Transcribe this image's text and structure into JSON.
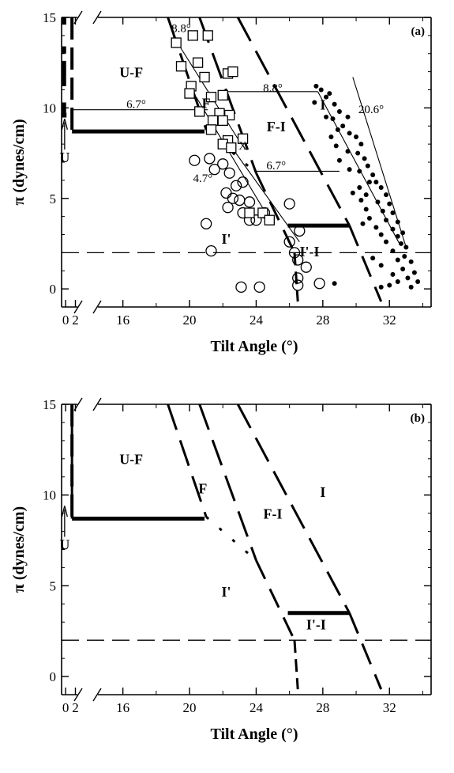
{
  "chart_data": [
    {
      "type": "scatter",
      "panel_label": "(a)",
      "xlabel": "Tilt Angle (°)",
      "ylabel": "π (dynes/cm)",
      "x_ticks": [
        "0",
        "2",
        "16",
        "20",
        "24",
        "28",
        "32"
      ],
      "y_ticks": [
        "0",
        "5",
        "10",
        "15"
      ],
      "xlim": [
        14.5,
        34.5
      ],
      "ylim": [
        -1,
        15
      ],
      "axis_break": "between 2 and 16",
      "region_labels": [
        {
          "text": "U-F",
          "x": 16.5,
          "y": 11.7
        },
        {
          "text": "F",
          "x": 21.0,
          "y": 10.0
        },
        {
          "text": "F-I",
          "x": 25.2,
          "y": 8.7
        },
        {
          "text": "I",
          "x": 28.0,
          "y": 9.9
        },
        {
          "text": "I'",
          "x": 22.2,
          "y": 2.5
        },
        {
          "text": "I'-I",
          "x": 27.2,
          "y": 1.8
        },
        {
          "text": "U",
          "x": -0.2,
          "y": 7.0
        },
        {
          "text": "X",
          "x": 23.2,
          "y": 7.7
        }
      ],
      "annotations": [
        {
          "text": "8.8°",
          "x": 19.5,
          "y": 14.2
        },
        {
          "text": "6.7°",
          "x": 16.8,
          "y": 10.0
        },
        {
          "text": "8.8°",
          "x": 25.0,
          "y": 10.9
        },
        {
          "text": "20.6°",
          "x": 30.9,
          "y": 9.7
        },
        {
          "text": "6.7°",
          "x": 25.2,
          "y": 6.6
        },
        {
          "text": "4.7°",
          "x": 20.8,
          "y": 5.9
        }
      ],
      "series": [
        {
          "marker": "open-square",
          "points": [
            [
              19.2,
              13.6
            ],
            [
              20.2,
              14.0
            ],
            [
              21.1,
              14.0
            ],
            [
              19.5,
              12.3
            ],
            [
              20.5,
              12.5
            ],
            [
              20.9,
              11.7
            ],
            [
              20.1,
              11.2
            ],
            [
              20.0,
              10.8
            ],
            [
              21.3,
              10.6
            ],
            [
              22.0,
              10.7
            ],
            [
              22.3,
              11.9
            ],
            [
              22.6,
              12.0
            ],
            [
              21.8,
              9.7
            ],
            [
              22.4,
              9.6
            ],
            [
              20.6,
              9.8
            ],
            [
              21.4,
              9.3
            ],
            [
              22.0,
              9.3
            ],
            [
              21.3,
              8.8
            ],
            [
              22.3,
              8.2
            ],
            [
              22.0,
              8.0
            ],
            [
              22.5,
              7.8
            ],
            [
              23.2,
              8.3
            ],
            [
              23.6,
              4.2
            ],
            [
              24.4,
              4.2
            ],
            [
              24.8,
              3.8
            ]
          ]
        },
        {
          "marker": "open-circle",
          "points": [
            [
              20.3,
              7.1
            ],
            [
              21.2,
              7.2
            ],
            [
              21.5,
              6.6
            ],
            [
              22.0,
              6.9
            ],
            [
              22.4,
              6.4
            ],
            [
              22.8,
              5.7
            ],
            [
              23.2,
              5.9
            ],
            [
              22.2,
              5.3
            ],
            [
              22.6,
              5.0
            ],
            [
              22.3,
              4.5
            ],
            [
              23.0,
              4.9
            ],
            [
              23.6,
              4.8
            ],
            [
              23.2,
              4.2
            ],
            [
              23.6,
              3.8
            ],
            [
              24.0,
              3.8
            ],
            [
              24.5,
              4.2
            ],
            [
              21.0,
              3.6
            ],
            [
              21.3,
              2.1
            ],
            [
              26.0,
              4.7
            ],
            [
              26.0,
              2.6
            ],
            [
              26.3,
              2.0
            ],
            [
              26.5,
              1.6
            ],
            [
              26.5,
              0.6
            ],
            [
              26.5,
              0.2
            ],
            [
              27.0,
              1.2
            ],
            [
              27.8,
              0.3
            ],
            [
              26.6,
              3.2
            ],
            [
              23.1,
              0.1
            ],
            [
              24.2,
              0.1
            ]
          ]
        },
        {
          "marker": "filled-dot",
          "points": [
            [
              27.6,
              11.2
            ],
            [
              27.9,
              11.0
            ],
            [
              28.2,
              10.6
            ],
            [
              28.4,
              10.8
            ],
            [
              27.5,
              10.3
            ],
            [
              28.7,
              10.2
            ],
            [
              29.0,
              9.8
            ],
            [
              28.2,
              9.5
            ],
            [
              28.6,
              9.4
            ],
            [
              29.5,
              9.5
            ],
            [
              29.2,
              9.0
            ],
            [
              28.9,
              8.8
            ],
            [
              29.6,
              8.6
            ],
            [
              28.5,
              8.4
            ],
            [
              30.0,
              8.4
            ],
            [
              30.3,
              8.0
            ],
            [
              28.8,
              7.9
            ],
            [
              29.5,
              7.6
            ],
            [
              30.1,
              7.5
            ],
            [
              30.5,
              7.2
            ],
            [
              29.0,
              7.1
            ],
            [
              30.7,
              6.8
            ],
            [
              29.6,
              6.6
            ],
            [
              30.2,
              6.5
            ],
            [
              31.0,
              6.3
            ],
            [
              30.8,
              5.9
            ],
            [
              31.2,
              5.9
            ],
            [
              30.2,
              5.6
            ],
            [
              31.5,
              5.6
            ],
            [
              29.8,
              5.3
            ],
            [
              30.6,
              5.2
            ],
            [
              31.8,
              5.2
            ],
            [
              30.3,
              4.9
            ],
            [
              31.3,
              4.8
            ],
            [
              32.0,
              4.7
            ],
            [
              30.6,
              4.4
            ],
            [
              31.6,
              4.3
            ],
            [
              32.2,
              4.2
            ],
            [
              30.8,
              3.9
            ],
            [
              31.8,
              3.8
            ],
            [
              32.5,
              3.7
            ],
            [
              30.4,
              3.6
            ],
            [
              31.2,
              3.4
            ],
            [
              32.2,
              3.3
            ],
            [
              32.8,
              3.1
            ],
            [
              31.5,
              3.0
            ],
            [
              32.5,
              2.9
            ],
            [
              31.8,
              2.6
            ],
            [
              32.7,
              2.5
            ],
            [
              33.0,
              2.3
            ],
            [
              32.2,
              2.1
            ],
            [
              32.9,
              1.8
            ],
            [
              31.0,
              1.7
            ],
            [
              32.5,
              1.6
            ],
            [
              33.3,
              1.5
            ],
            [
              31.5,
              1.3
            ],
            [
              32.8,
              1.1
            ],
            [
              33.5,
              0.9
            ],
            [
              32.2,
              0.8
            ],
            [
              33.1,
              0.6
            ],
            [
              32.5,
              0.4
            ],
            [
              33.7,
              0.4
            ],
            [
              32.0,
              0.2
            ],
            [
              33.3,
              0.1
            ],
            [
              31.5,
              0.1
            ],
            [
              28.7,
              0.3
            ]
          ]
        }
      ]
    },
    {
      "type": "line",
      "panel_label": "(b)",
      "xlabel": "Tilt Angle (°)",
      "ylabel": "π (dynes/cm)",
      "x_ticks": [
        "0",
        "2",
        "16",
        "20",
        "24",
        "28",
        "32"
      ],
      "y_ticks": [
        "0",
        "5",
        "10",
        "15"
      ],
      "xlim": [
        14.5,
        34.5
      ],
      "ylim": [
        -1,
        15
      ],
      "axis_break": "between 2 and 16",
      "region_labels": [
        {
          "text": "U-F",
          "x": 16.5,
          "y": 11.7
        },
        {
          "text": "F",
          "x": 20.8,
          "y": 10.1
        },
        {
          "text": "F-I",
          "x": 25.0,
          "y": 8.7
        },
        {
          "text": "I",
          "x": 28.0,
          "y": 9.9
        },
        {
          "text": "I'",
          "x": 22.2,
          "y": 4.4
        },
        {
          "text": "I'-I",
          "x": 27.6,
          "y": 2.6
        },
        {
          "text": "U",
          "x": -0.2,
          "y": 7.0
        }
      ]
    }
  ]
}
